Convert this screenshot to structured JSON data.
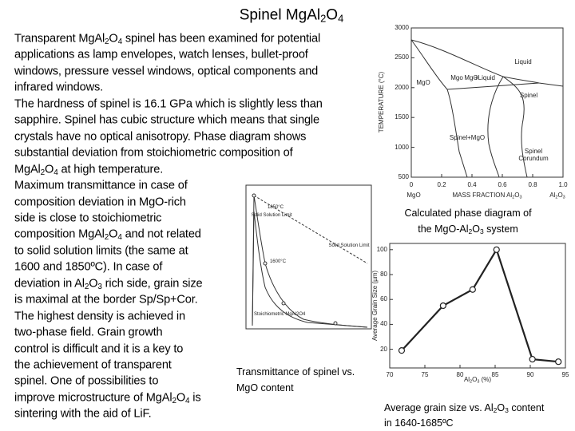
{
  "title": [
    "Spinel MgAl",
    "2",
    "O",
    "4"
  ],
  "body": [
    [
      "Transparent MgAl",
      "2",
      "O",
      "4",
      " spinel has been examined for potential"
    ],
    [
      "applications as lamp envelopes, watch lenses, bullet-proof"
    ],
    [
      "windows, pressure vessel windows, optical components and"
    ],
    [
      "infrared windows."
    ],
    [
      "The hardness of spinel is 16.1 GPa which is slightly less than"
    ],
    [
      "sapphire. Spinel has cubic structure which means that single"
    ],
    [
      "crystals have no optical anisotropy. Phase diagram shows"
    ],
    [
      "substantial deviation from stoichiometric composition of"
    ],
    [
      "MgAl",
      "2",
      "O",
      "4",
      " at high temperature."
    ],
    [
      "Maximum transmittance in case of"
    ],
    [
      "composition deviation in MgO-rich"
    ],
    [
      "side is close to stoichiometric"
    ],
    [
      "composition MgAl",
      "2",
      "O",
      "4",
      " and not related"
    ],
    [
      "to solid solution limits (the same at"
    ],
    [
      "1600 and 1850ºC). In case of"
    ],
    [
      "deviation in Al",
      "2",
      "O",
      "3",
      " rich side, grain size"
    ],
    [
      "is maximal at the border Sp/Sp+Cor."
    ],
    [
      "The highest density is achieved in"
    ],
    [
      "two-phase field. Grain growth"
    ],
    [
      "control is difficult and it is a key to"
    ],
    [
      "the achievement of transparent"
    ],
    [
      "spinel. One of possibilities to"
    ],
    [
      "improve microstructure of MgAl",
      "2",
      "O",
      "4",
      " is"
    ],
    [
      "sintering with the aid of LiF."
    ]
  ],
  "phase_diagram": {
    "caption": [
      [
        "Calculated phase diagram of"
      ],
      [
        "the MgO-Al",
        "2",
        "O",
        "3",
        " system"
      ]
    ],
    "ylabel": "TEMPERATURE (°C)",
    "xlabel": [
      "MASS FRACTION Al",
      "2",
      "O",
      "3"
    ],
    "left_label": "MgO",
    "right_label": [
      "Al",
      "2",
      "O",
      "3"
    ],
    "xlim": [
      0,
      1
    ],
    "ylim": [
      500,
      3000
    ],
    "xticks": [
      0,
      0.2,
      0.4,
      0.6,
      0.8,
      {
        "value": 1,
        "label": "1.0"
      }
    ],
    "yticks": [
      3000,
      2500,
      2000,
      1500,
      1000,
      500
    ],
    "regions": [
      "Liquid",
      "MgO",
      "Mgo",
      "MgO",
      "+Liquid",
      "Spinel",
      "Spinel+MgO",
      "Spinel",
      "Corundum"
    ]
  },
  "transmittance": {
    "caption": [
      [
        "Transmittance of spinel vs."
      ],
      [
        "MgO content"
      ]
    ],
    "labels": [
      "1850°C",
      "Solid Solution Limit",
      "1600°C",
      "Solid Solution Limit",
      "Stoichiometric MgAl2O4"
    ]
  },
  "grain_size": {
    "caption": [
      [
        "Average grain size vs. Al",
        "2",
        "O",
        "3",
        " content"
      ],
      [
        "in 1640-1685ºC"
      ]
    ],
    "ylabel": "Average Grain Size (µm)",
    "xlabel": [
      "Al",
      "2",
      "O",
      "3",
      " (%)"
    ],
    "xlim": [
      70,
      95
    ],
    "ylim": [
      5,
      105
    ],
    "xticks": [
      70,
      75,
      80,
      85,
      90,
      95
    ],
    "yticks": [
      20,
      40,
      60,
      80,
      100
    ],
    "x": [
      71.7,
      77.6,
      81.8,
      85.2,
      90.3,
      94
    ],
    "values": [
      19,
      55,
      68,
      100,
      12,
      10
    ]
  }
}
